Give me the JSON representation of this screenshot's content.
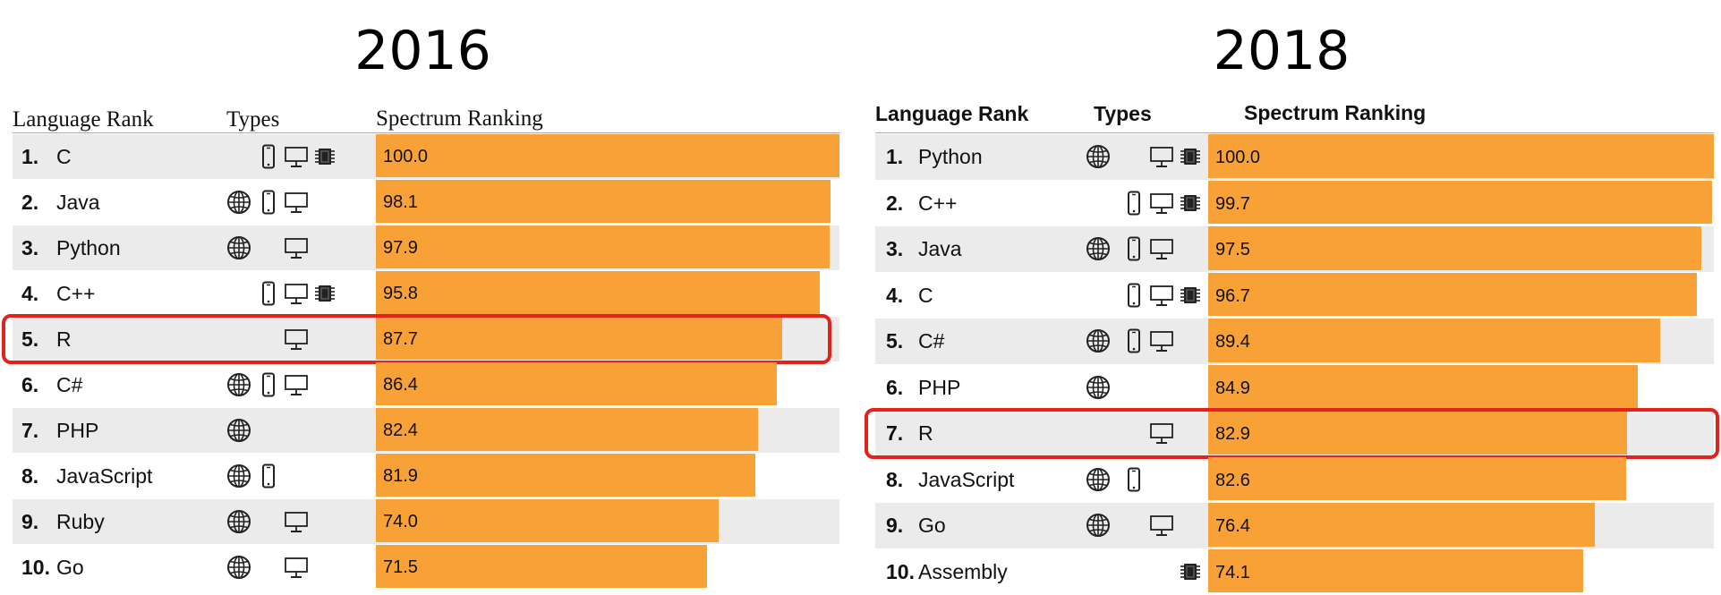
{
  "chart_data": [
    {
      "type": "bar",
      "title": "2016",
      "headers": {
        "rank": "Language Rank",
        "types": "Types",
        "ranking": "Spectrum Ranking"
      },
      "xlim": [
        0,
        100
      ],
      "highlight_rank": 5,
      "rows": [
        {
          "rank": "1.",
          "name": "C",
          "types": [
            "mobile",
            "desktop",
            "embedded"
          ],
          "value": 100.0,
          "label": "100.0"
        },
        {
          "rank": "2.",
          "name": "Java",
          "types": [
            "web",
            "mobile",
            "desktop"
          ],
          "value": 98.1,
          "label": "98.1"
        },
        {
          "rank": "3.",
          "name": "Python",
          "types": [
            "web",
            "desktop"
          ],
          "value": 97.9,
          "label": "97.9"
        },
        {
          "rank": "4.",
          "name": "C++",
          "types": [
            "mobile",
            "desktop",
            "embedded"
          ],
          "value": 95.8,
          "label": "95.8"
        },
        {
          "rank": "5.",
          "name": "R",
          "types": [
            "desktop"
          ],
          "value": 87.7,
          "label": "87.7"
        },
        {
          "rank": "6.",
          "name": "C#",
          "types": [
            "web",
            "mobile",
            "desktop"
          ],
          "value": 86.4,
          "label": "86.4"
        },
        {
          "rank": "7.",
          "name": "PHP",
          "types": [
            "web"
          ],
          "value": 82.4,
          "label": "82.4"
        },
        {
          "rank": "8.",
          "name": "JavaScript",
          "types": [
            "web",
            "mobile"
          ],
          "value": 81.9,
          "label": "81.9"
        },
        {
          "rank": "9.",
          "name": "Ruby",
          "types": [
            "web",
            "desktop"
          ],
          "value": 74.0,
          "label": "74.0"
        },
        {
          "rank": "10.",
          "name": "Go",
          "types": [
            "web",
            "desktop"
          ],
          "value": 71.5,
          "label": "71.5"
        }
      ]
    },
    {
      "type": "bar",
      "title": "2018",
      "headers": {
        "rank": "Language Rank",
        "types": "Types",
        "ranking": "Spectrum Ranking"
      },
      "xlim": [
        0,
        100
      ],
      "highlight_rank": 7,
      "rows": [
        {
          "rank": "1.",
          "name": "Python",
          "types": [
            "web",
            "desktop",
            "embedded"
          ],
          "value": 100.0,
          "label": "100.0"
        },
        {
          "rank": "2.",
          "name": "C++",
          "types": [
            "mobile",
            "desktop",
            "embedded"
          ],
          "value": 99.7,
          "label": "99.7"
        },
        {
          "rank": "3.",
          "name": "Java",
          "types": [
            "web",
            "mobile",
            "desktop"
          ],
          "value": 97.5,
          "label": "97.5"
        },
        {
          "rank": "4.",
          "name": "C",
          "types": [
            "mobile",
            "desktop",
            "embedded"
          ],
          "value": 96.7,
          "label": "96.7"
        },
        {
          "rank": "5.",
          "name": "C#",
          "types": [
            "web",
            "mobile",
            "desktop"
          ],
          "value": 89.4,
          "label": "89.4"
        },
        {
          "rank": "6.",
          "name": "PHP",
          "types": [
            "web"
          ],
          "value": 84.9,
          "label": "84.9"
        },
        {
          "rank": "7.",
          "name": "R",
          "types": [
            "desktop"
          ],
          "value": 82.9,
          "label": "82.9"
        },
        {
          "rank": "8.",
          "name": "JavaScript",
          "types": [
            "web",
            "mobile"
          ],
          "value": 82.6,
          "label": "82.6"
        },
        {
          "rank": "9.",
          "name": "Go",
          "types": [
            "web",
            "desktop"
          ],
          "value": 76.4,
          "label": "76.4"
        },
        {
          "rank": "10.",
          "name": "Assembly",
          "types": [
            "embedded"
          ],
          "value": 74.1,
          "label": "74.1"
        }
      ]
    }
  ],
  "colors": {
    "bar": "#f7a137",
    "highlight": "#e3221c",
    "row_alt": "#ebebeb"
  }
}
